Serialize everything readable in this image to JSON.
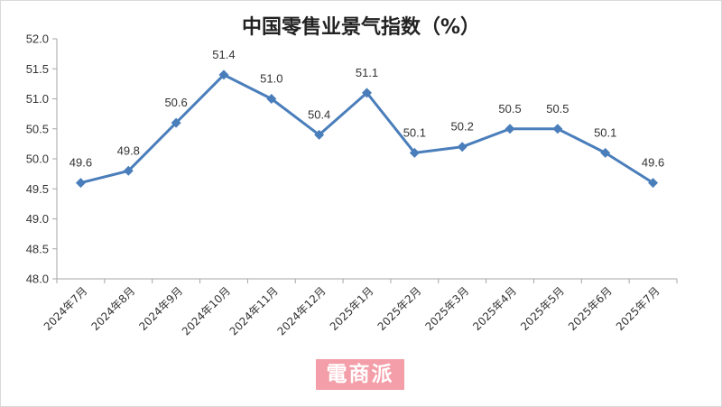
{
  "chart_data": {
    "type": "line",
    "title": "中国零售业景气指数（%）",
    "xlabel": "",
    "ylabel": "",
    "ylim": [
      48.0,
      52.0
    ],
    "yticks": [
      "52.0",
      "51.5",
      "51.0",
      "50.5",
      "50.0",
      "49.5",
      "49.0",
      "48.5",
      "48.0"
    ],
    "categories": [
      "2024年7月",
      "2024年8月",
      "2024年9月",
      "2024年10月",
      "2024年11月",
      "2024年12月",
      "2025年1月",
      "2025年2月",
      "2025年3月",
      "2025年4月",
      "2025年5月",
      "2025年6月",
      "2025年7月"
    ],
    "values": [
      49.6,
      49.8,
      50.6,
      51.4,
      51.0,
      50.4,
      51.1,
      50.1,
      50.2,
      50.5,
      50.5,
      50.1,
      49.6
    ],
    "value_labels": [
      "49.6",
      "49.8",
      "50.6",
      "51.4",
      "51.0",
      "50.4",
      "51.1",
      "50.1",
      "50.2",
      "50.5",
      "50.5",
      "50.1",
      "49.6"
    ],
    "line_color": "#4a7ebb",
    "grid": false
  },
  "watermark": "電商派"
}
